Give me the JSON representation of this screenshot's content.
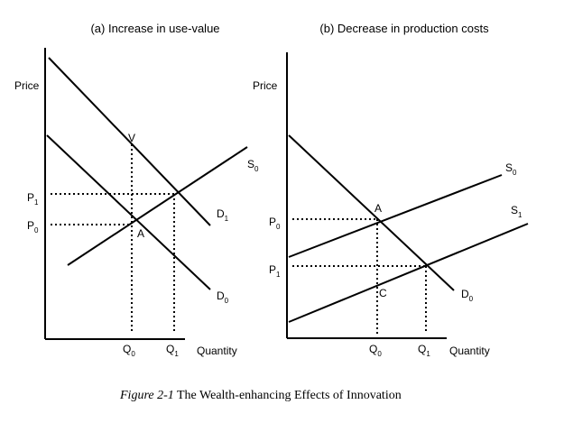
{
  "panel_a": {
    "title": "(a) Increase in use-value",
    "y_axis_label": "Price",
    "x_axis_label": "Quantity",
    "supply": "S",
    "supply_sub": "0",
    "demand_new": "D",
    "demand_new_sub": "1",
    "demand_old": "D",
    "demand_old_sub": "0",
    "point_v": "V",
    "point_a": "A",
    "p1": "P",
    "p1_sub": "1",
    "p0": "P",
    "p0_sub": "0",
    "q0": "Q",
    "q0_sub": "0",
    "q1": "Q",
    "q1_sub": "1"
  },
  "panel_b": {
    "title": "(b) Decrease in production costs",
    "y_axis_label": "Price",
    "x_axis_label": "Quantity",
    "supply_old": "S",
    "supply_old_sub": "0",
    "supply_new": "S",
    "supply_new_sub": "1",
    "demand": "D",
    "demand_sub": "0",
    "point_a": "A",
    "point_c": "C",
    "p0": "P",
    "p0_sub": "0",
    "p1": "P",
    "p1_sub": "1",
    "q0": "Q",
    "q0_sub": "0",
    "q1": "Q",
    "q1_sub": "1"
  },
  "caption": {
    "figure_label": "Figure 2-1",
    "text": " The Wealth-enhancing Effects of Innovation"
  }
}
